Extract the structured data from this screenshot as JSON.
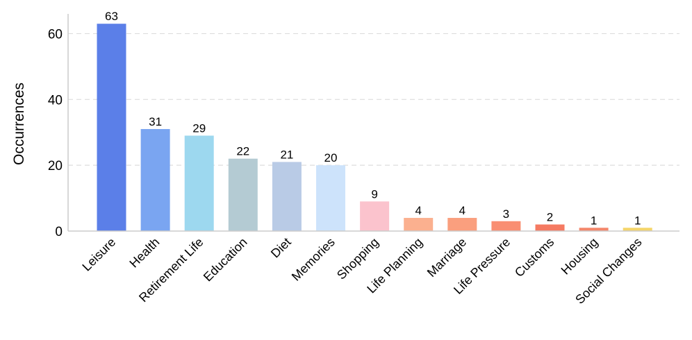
{
  "chart_data": {
    "type": "bar",
    "title": "",
    "xlabel": "",
    "ylabel": "Occurrences",
    "ylim": [
      0,
      66
    ],
    "yticks": [
      0,
      20,
      40,
      60
    ],
    "grid": true,
    "categories": [
      "Leisure",
      "Health",
      "Retirement Life",
      "Education",
      "Diet",
      "Memories",
      "Shopping",
      "Life Planning",
      "Marriage",
      "Life Pressure",
      "Customs",
      "Housing",
      "Social Changes"
    ],
    "values": [
      63,
      31,
      29,
      22,
      21,
      20,
      9,
      4,
      4,
      3,
      2,
      1,
      1
    ],
    "colors": [
      "#5b7fe8",
      "#7aa5f1",
      "#9dd8ef",
      "#b4cbd3",
      "#b9cbe6",
      "#cde3fb",
      "#fbc3cd",
      "#fbb08f",
      "#fa9f7e",
      "#f98e72",
      "#f57a62",
      "#f4876b",
      "#f5d56a"
    ]
  }
}
